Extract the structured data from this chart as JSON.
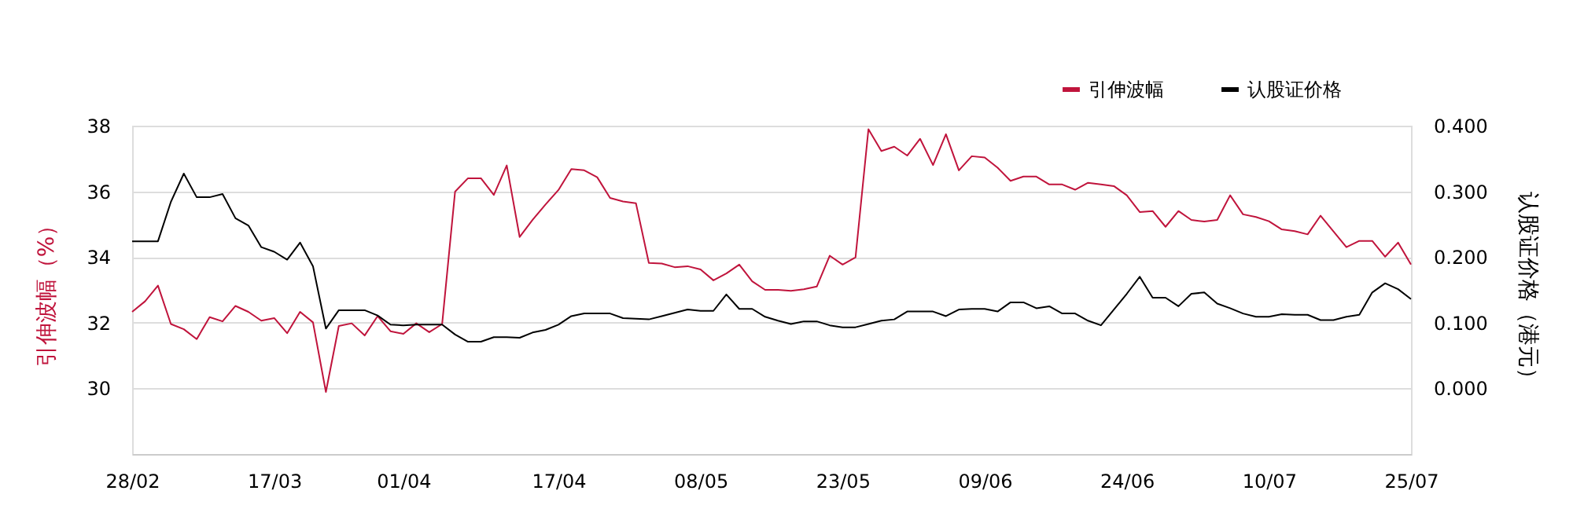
{
  "chart_data": {
    "type": "line",
    "categories": [
      "28/02",
      null,
      null,
      null,
      null,
      null,
      null,
      null,
      null,
      null,
      null,
      "17/03",
      null,
      null,
      null,
      null,
      null,
      null,
      null,
      null,
      null,
      "01/04",
      null,
      null,
      null,
      null,
      null,
      null,
      null,
      null,
      null,
      null,
      null,
      "17/04",
      null,
      null,
      null,
      null,
      null,
      null,
      null,
      null,
      null,
      null,
      "08/05",
      null,
      null,
      null,
      null,
      null,
      null,
      null,
      null,
      null,
      null,
      "23/05",
      null,
      null,
      null,
      null,
      null,
      null,
      null,
      null,
      null,
      null,
      "09/06",
      null,
      null,
      null,
      null,
      null,
      null,
      null,
      null,
      null,
      null,
      "24/06",
      null,
      null,
      null,
      null,
      null,
      null,
      null,
      null,
      null,
      null,
      "10/07",
      null,
      null,
      null,
      null,
      null,
      null,
      null,
      null,
      null,
      null,
      "25/07"
    ],
    "series": [
      {
        "name": "引伸波幅",
        "color": "#c0143c",
        "axis": "y",
        "values": [
          32.33,
          32.65,
          33.13,
          31.96,
          31.8,
          31.5,
          32.17,
          32.04,
          32.51,
          32.33,
          32.06,
          32.14,
          31.68,
          32.33,
          32.01,
          29.89,
          31.9,
          31.98,
          31.61,
          32.2,
          31.74,
          31.66,
          31.98,
          31.71,
          31.96,
          35.99,
          36.4,
          36.4,
          35.89,
          36.79,
          34.61,
          35.13,
          35.6,
          36.04,
          36.68,
          36.64,
          36.43,
          35.8,
          35.69,
          35.64,
          33.82,
          33.8,
          33.69,
          33.72,
          33.62,
          33.29,
          33.5,
          33.77,
          33.26,
          33.0,
          33.0,
          32.97,
          33.02,
          33.1,
          34.04,
          33.77,
          33.99,
          37.89,
          37.23,
          37.36,
          37.09,
          37.6,
          36.8,
          37.74,
          36.64,
          37.07,
          37.03,
          36.72,
          36.32,
          36.45,
          36.45,
          36.21,
          36.21,
          36.05,
          36.26,
          36.21,
          36.16,
          35.88,
          35.37,
          35.4,
          34.92,
          35.4,
          35.13,
          35.08,
          35.13,
          35.88,
          35.3,
          35.22,
          35.09,
          34.84,
          34.79,
          34.69,
          35.26,
          34.78,
          34.3,
          34.49,
          34.49,
          34.01,
          34.44,
          33.77
        ]
      },
      {
        "name": "认股证价格",
        "color": "#000000",
        "axis": "y2",
        "values": [
          0.224,
          0.224,
          0.224,
          0.284,
          0.327,
          0.291,
          0.291,
          0.296,
          0.259,
          0.248,
          0.215,
          0.208,
          0.196,
          0.222,
          0.186,
          0.091,
          0.119,
          0.119,
          0.119,
          0.111,
          0.097,
          0.096,
          0.097,
          0.097,
          0.097,
          0.082,
          0.071,
          0.071,
          0.078,
          0.078,
          0.077,
          0.085,
          0.089,
          0.097,
          0.11,
          0.114,
          0.114,
          0.114,
          0.107,
          0.106,
          0.105,
          0.11,
          0.115,
          0.12,
          0.118,
          0.118,
          0.143,
          0.121,
          0.121,
          0.109,
          0.103,
          0.098,
          0.102,
          0.102,
          0.096,
          0.093,
          0.093,
          0.098,
          0.103,
          0.105,
          0.117,
          0.117,
          0.117,
          0.11,
          0.12,
          0.121,
          0.121,
          0.117,
          0.131,
          0.131,
          0.122,
          0.125,
          0.114,
          0.114,
          0.103,
          0.096,
          0.12,
          0.144,
          0.17,
          0.138,
          0.138,
          0.125,
          0.144,
          0.146,
          0.129,
          0.122,
          0.114,
          0.109,
          0.109,
          0.113,
          0.112,
          0.112,
          0.104,
          0.104,
          0.109,
          0.112,
          0.146,
          0.16,
          0.151,
          0.136
        ]
      }
    ],
    "ylabel": "引伸波幅（%）",
    "y2label": "认股证价格（港元）",
    "ylim": [
      28,
      38
    ],
    "yticks": [
      30,
      32,
      34,
      36,
      38
    ],
    "y2lim": [
      -0.1,
      0.4
    ],
    "y2ticks": [
      {
        "value": 0,
        "label": "0.000"
      },
      {
        "value": 0.1,
        "label": "0.100"
      },
      {
        "value": 0.2,
        "label": "0.200"
      },
      {
        "value": 0.3,
        "label": "0.300"
      },
      {
        "value": 0.4,
        "label": "0.400"
      }
    ],
    "grid": "y",
    "legend": "top right",
    "marker": "none",
    "line_style": "solid"
  }
}
